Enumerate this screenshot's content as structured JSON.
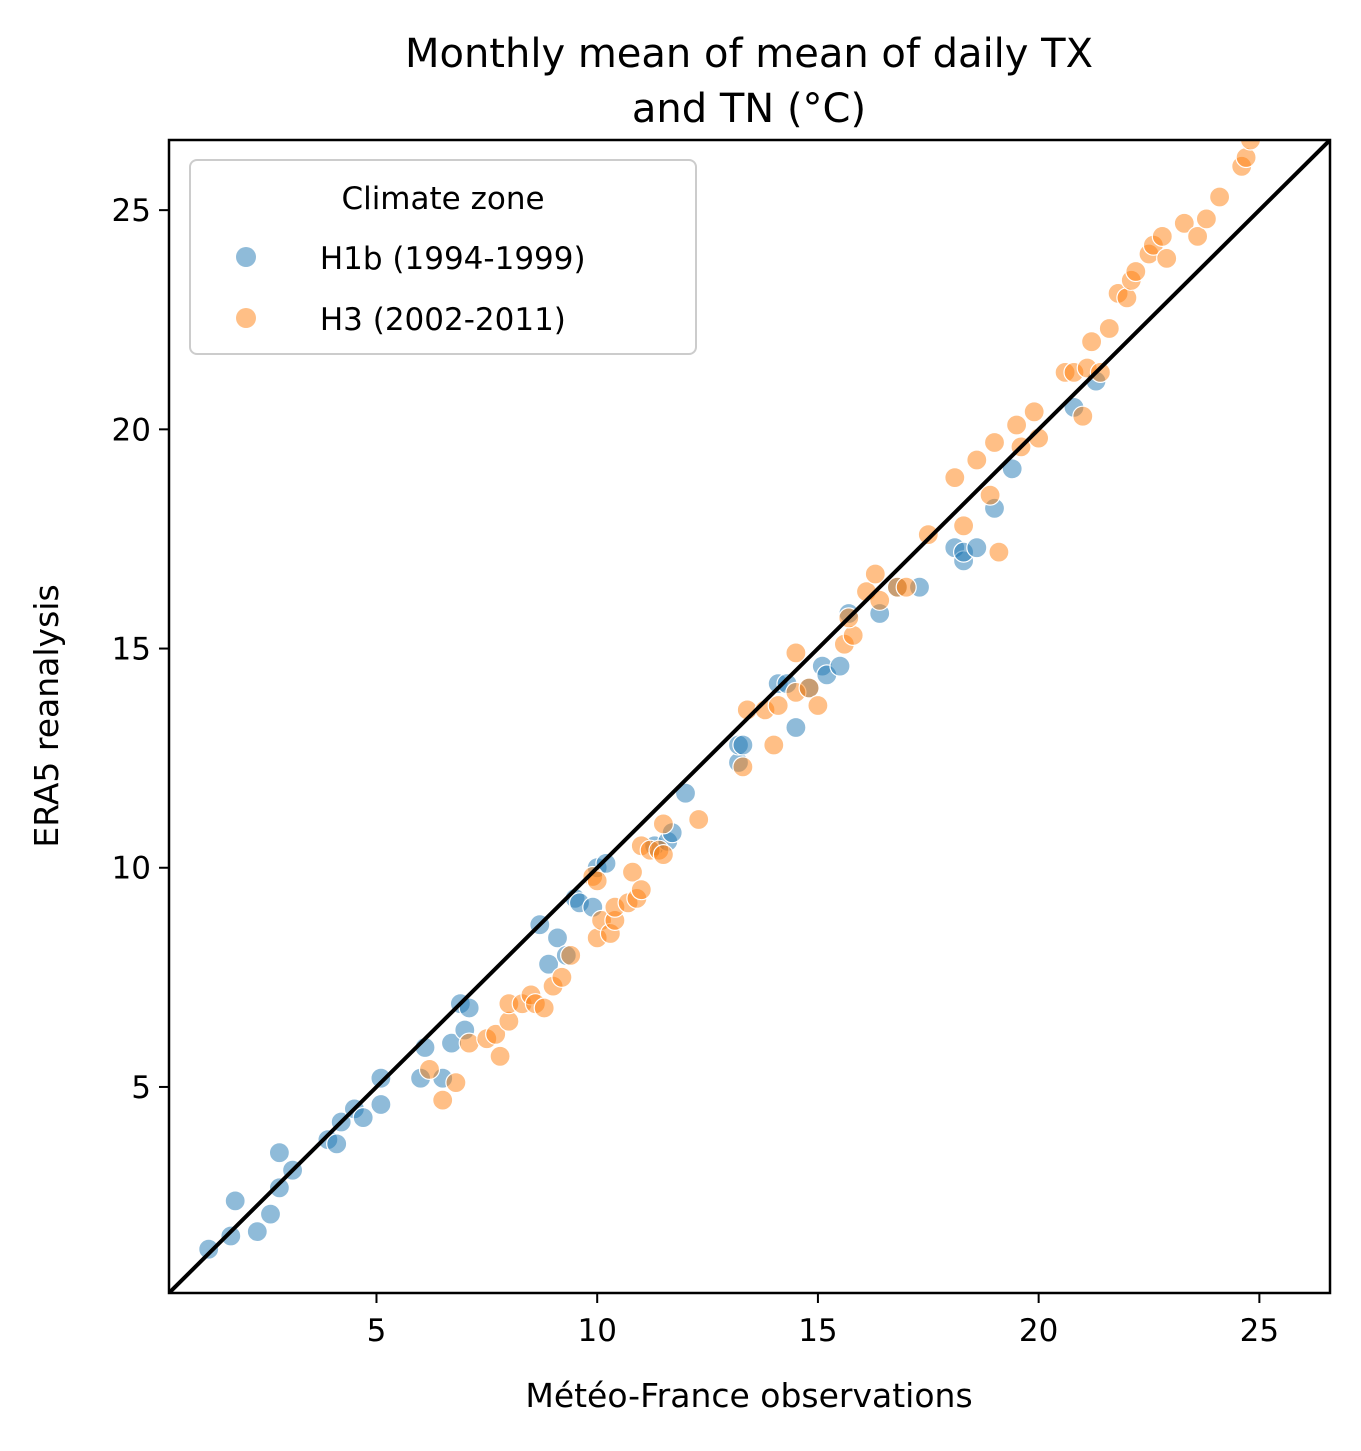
{
  "chart_data": {
    "type": "scatter",
    "title_lines": [
      "Monthly mean of mean of daily TX",
      "and TN (°C)"
    ],
    "xlabel": "Météo-France observations",
    "ylabel": "ERA5 reanalysis",
    "xlim": [
      0.3,
      26.6
    ],
    "ylim": [
      0.3,
      26.6
    ],
    "xticks": [
      5,
      10,
      15,
      20,
      25
    ],
    "yticks": [
      5,
      10,
      15,
      20,
      25
    ],
    "grid": false,
    "legend": {
      "title": "Climate zone",
      "placement": "top-left"
    },
    "identity_line": {
      "color": "#000000",
      "from": [
        0.3,
        0.3
      ],
      "to": [
        26.6,
        26.6
      ]
    },
    "series": [
      {
        "name": " H1b (1994-1999)",
        "color": "#1f77b4",
        "points": [
          [
            1.2,
            1.3
          ],
          [
            1.7,
            1.6
          ],
          [
            1.8,
            2.4
          ],
          [
            2.3,
            1.7
          ],
          [
            2.6,
            2.1
          ],
          [
            2.8,
            2.7
          ],
          [
            2.8,
            3.5
          ],
          [
            3.1,
            3.1
          ],
          [
            3.9,
            3.8
          ],
          [
            4.1,
            3.7
          ],
          [
            4.2,
            4.2
          ],
          [
            4.5,
            4.5
          ],
          [
            4.7,
            4.3
          ],
          [
            5.1,
            4.6
          ],
          [
            5.1,
            5.2
          ],
          [
            6.0,
            5.2
          ],
          [
            6.1,
            5.9
          ],
          [
            6.5,
            5.2
          ],
          [
            6.7,
            6.0
          ],
          [
            6.9,
            6.9
          ],
          [
            7.0,
            6.3
          ],
          [
            7.1,
            6.8
          ],
          [
            8.7,
            8.7
          ],
          [
            8.9,
            7.8
          ],
          [
            9.1,
            8.4
          ],
          [
            9.3,
            8.0
          ],
          [
            9.5,
            9.3
          ],
          [
            9.6,
            9.2
          ],
          [
            9.9,
            9.1
          ],
          [
            10.0,
            10.0
          ],
          [
            10.2,
            10.1
          ],
          [
            11.3,
            10.5
          ],
          [
            11.6,
            10.6
          ],
          [
            11.7,
            10.8
          ],
          [
            12.0,
            11.7
          ],
          [
            13.2,
            12.4
          ],
          [
            13.2,
            12.8
          ],
          [
            13.3,
            12.8
          ],
          [
            14.1,
            14.2
          ],
          [
            14.3,
            14.2
          ],
          [
            14.5,
            13.2
          ],
          [
            14.8,
            14.1
          ],
          [
            15.1,
            14.6
          ],
          [
            15.2,
            14.4
          ],
          [
            15.5,
            14.6
          ],
          [
            15.7,
            15.8
          ],
          [
            16.4,
            15.8
          ],
          [
            16.8,
            16.4
          ],
          [
            17.3,
            16.4
          ],
          [
            18.1,
            17.3
          ],
          [
            18.3,
            17.0
          ],
          [
            18.3,
            17.2
          ],
          [
            18.6,
            17.3
          ],
          [
            19.0,
            18.2
          ],
          [
            19.4,
            19.1
          ],
          [
            20.8,
            20.5
          ],
          [
            21.3,
            21.1
          ]
        ]
      },
      {
        "name": " H3 (2002-2011)",
        "color": "#ff7f0e",
        "points": [
          [
            6.2,
            5.4
          ],
          [
            6.5,
            4.7
          ],
          [
            6.8,
            5.1
          ],
          [
            7.1,
            6.0
          ],
          [
            7.5,
            6.1
          ],
          [
            7.7,
            6.2
          ],
          [
            7.8,
            5.7
          ],
          [
            8.0,
            6.5
          ],
          [
            8.0,
            6.9
          ],
          [
            8.3,
            6.9
          ],
          [
            8.5,
            7.1
          ],
          [
            8.6,
            6.9
          ],
          [
            8.8,
            6.8
          ],
          [
            9.0,
            7.3
          ],
          [
            9.2,
            7.5
          ],
          [
            9.4,
            8.0
          ],
          [
            9.9,
            9.8
          ],
          [
            10.0,
            8.4
          ],
          [
            10.0,
            9.7
          ],
          [
            10.1,
            8.8
          ],
          [
            10.3,
            8.5
          ],
          [
            10.4,
            8.8
          ],
          [
            10.4,
            9.1
          ],
          [
            10.7,
            9.2
          ],
          [
            10.8,
            9.9
          ],
          [
            10.9,
            9.3
          ],
          [
            11.0,
            9.5
          ],
          [
            11.0,
            10.5
          ],
          [
            11.2,
            10.4
          ],
          [
            11.4,
            10.4
          ],
          [
            11.5,
            10.3
          ],
          [
            11.5,
            11.0
          ],
          [
            12.3,
            11.1
          ],
          [
            13.3,
            12.3
          ],
          [
            13.4,
            13.6
          ],
          [
            13.8,
            13.6
          ],
          [
            14.0,
            12.8
          ],
          [
            14.1,
            13.7
          ],
          [
            14.5,
            14.0
          ],
          [
            14.5,
            14.9
          ],
          [
            14.8,
            14.1
          ],
          [
            15.0,
            13.7
          ],
          [
            15.6,
            15.1
          ],
          [
            15.8,
            15.3
          ],
          [
            15.7,
            15.7
          ],
          [
            16.1,
            16.3
          ],
          [
            16.3,
            16.7
          ],
          [
            16.4,
            16.1
          ],
          [
            16.8,
            16.4
          ],
          [
            17.0,
            16.4
          ],
          [
            17.5,
            17.6
          ],
          [
            18.1,
            18.9
          ],
          [
            18.3,
            17.8
          ],
          [
            18.6,
            19.3
          ],
          [
            18.9,
            18.5
          ],
          [
            19.0,
            19.7
          ],
          [
            19.1,
            17.2
          ],
          [
            19.5,
            20.1
          ],
          [
            19.6,
            19.6
          ],
          [
            19.9,
            20.4
          ],
          [
            20.0,
            19.8
          ],
          [
            20.6,
            21.3
          ],
          [
            20.8,
            21.3
          ],
          [
            21.0,
            20.3
          ],
          [
            21.1,
            21.4
          ],
          [
            21.2,
            22.0
          ],
          [
            21.4,
            21.3
          ],
          [
            21.6,
            22.3
          ],
          [
            21.8,
            23.1
          ],
          [
            22.0,
            23.0
          ],
          [
            22.1,
            23.4
          ],
          [
            22.2,
            23.6
          ],
          [
            22.5,
            24.0
          ],
          [
            22.6,
            24.2
          ],
          [
            22.8,
            24.4
          ],
          [
            22.9,
            23.9
          ],
          [
            23.3,
            24.7
          ],
          [
            23.6,
            24.4
          ],
          [
            23.8,
            24.8
          ],
          [
            24.1,
            25.3
          ],
          [
            24.6,
            26.0
          ],
          [
            24.7,
            26.2
          ],
          [
            24.8,
            26.6
          ]
        ]
      }
    ]
  }
}
